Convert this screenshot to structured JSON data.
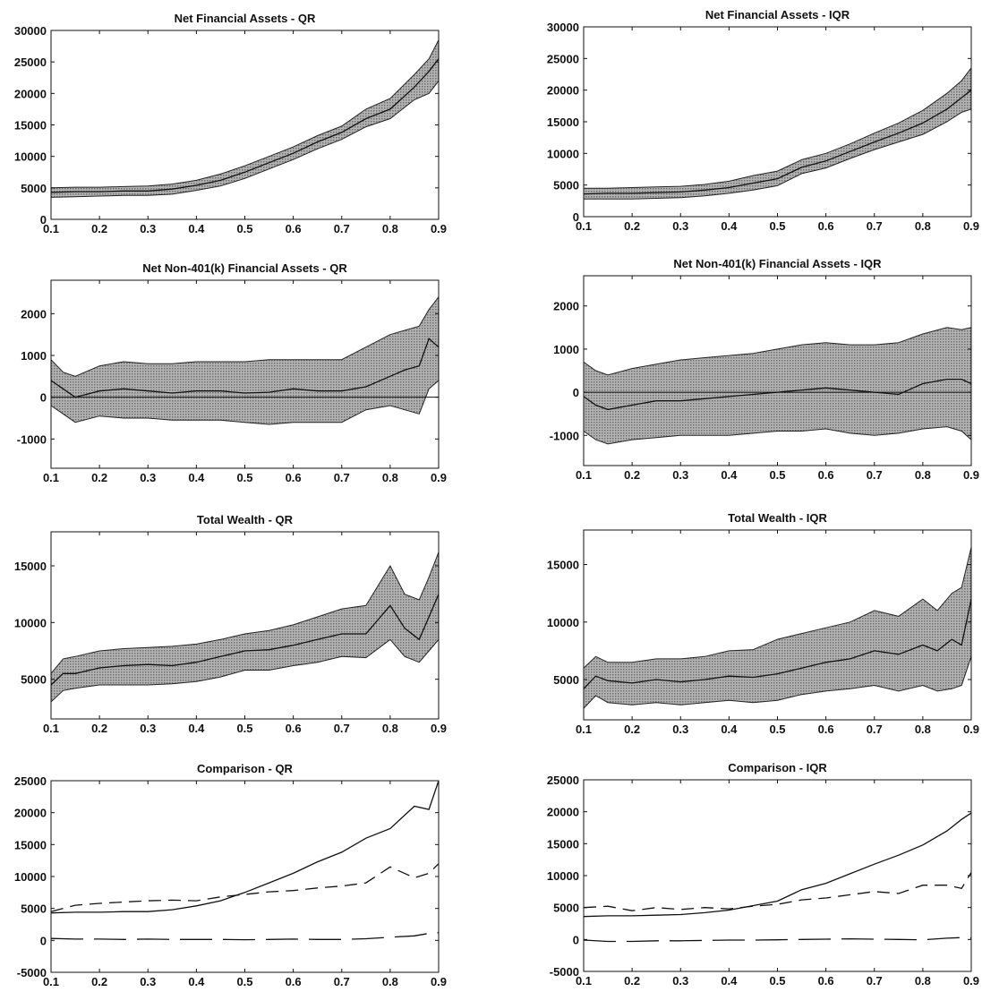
{
  "chart_data": [
    {
      "type": "area",
      "title": "Net Financial Assets - QR",
      "xlim": [
        0.1,
        0.9
      ],
      "ylim": [
        0,
        30000
      ],
      "xticks": [
        "0.1",
        "0.2",
        "0.3",
        "0.4",
        "0.5",
        "0.6",
        "0.7",
        "0.8",
        "0.9"
      ],
      "yticks": [
        "0",
        "5000",
        "10000",
        "15000",
        "20000",
        "25000",
        "30000"
      ],
      "x": [
        0.1,
        0.15,
        0.2,
        0.25,
        0.3,
        0.35,
        0.4,
        0.45,
        0.5,
        0.55,
        0.6,
        0.65,
        0.7,
        0.75,
        0.8,
        0.85,
        0.88,
        0.9
      ],
      "series": [
        {
          "role": "estimate",
          "values": [
            4300,
            4400,
            4400,
            4500,
            4500,
            4800,
            5400,
            6200,
            7500,
            9000,
            10500,
            12300,
            13800,
            16000,
            17500,
            21000,
            23500,
            25500
          ]
        },
        {
          "role": "upper",
          "values": [
            5000,
            5100,
            5100,
            5200,
            5300,
            5600,
            6200,
            7200,
            8500,
            10000,
            11500,
            13300,
            14800,
            17500,
            19200,
            23000,
            25500,
            28500
          ]
        },
        {
          "role": "lower",
          "values": [
            3500,
            3600,
            3700,
            3800,
            3800,
            4000,
            4600,
            5300,
            6500,
            8000,
            9500,
            11200,
            12700,
            14700,
            16000,
            19000,
            20000,
            22000
          ]
        }
      ],
      "zero_line": false
    },
    {
      "type": "area",
      "title": "Net Financial Assets - IQR",
      "xlim": [
        0.1,
        0.9
      ],
      "ylim": [
        0,
        30000
      ],
      "xticks": [
        "0.1",
        "0.2",
        "0.3",
        "0.4",
        "0.5",
        "0.6",
        "0.7",
        "0.8",
        "0.9"
      ],
      "yticks": [
        "0",
        "5000",
        "10000",
        "15000",
        "20000",
        "25000",
        "30000"
      ],
      "x": [
        0.1,
        0.15,
        0.2,
        0.25,
        0.3,
        0.35,
        0.4,
        0.45,
        0.5,
        0.55,
        0.6,
        0.65,
        0.7,
        0.75,
        0.8,
        0.85,
        0.88,
        0.9
      ],
      "series": [
        {
          "role": "estimate",
          "values": [
            3600,
            3700,
            3700,
            3800,
            3900,
            4200,
            4600,
            5300,
            6000,
            7800,
            8800,
            10300,
            11800,
            13200,
            14800,
            17000,
            18800,
            20000
          ]
        },
        {
          "role": "upper",
          "values": [
            4500,
            4500,
            4600,
            4700,
            4800,
            5100,
            5600,
            6500,
            7200,
            9000,
            10000,
            11500,
            13200,
            14800,
            16800,
            19500,
            21500,
            23500
          ]
        },
        {
          "role": "lower",
          "values": [
            2800,
            2800,
            2800,
            2900,
            3000,
            3300,
            3700,
            4200,
            4900,
            6800,
            7700,
            9200,
            10600,
            11800,
            13000,
            15000,
            16500,
            17000
          ]
        }
      ],
      "zero_line": false
    },
    {
      "type": "area",
      "title": "Net Non-401(k) Financial Assets - QR",
      "xlim": [
        0.1,
        0.9
      ],
      "ylim": [
        -1700,
        2800
      ],
      "xticks": [
        "0.1",
        "0.2",
        "0.3",
        "0.4",
        "0.5",
        "0.6",
        "0.7",
        "0.8",
        "0.9"
      ],
      "yticks": [
        "-1000",
        "0",
        "1000",
        "2000"
      ],
      "x": [
        0.1,
        0.125,
        0.15,
        0.2,
        0.25,
        0.3,
        0.35,
        0.4,
        0.45,
        0.5,
        0.55,
        0.6,
        0.65,
        0.7,
        0.75,
        0.8,
        0.83,
        0.86,
        0.88,
        0.9
      ],
      "series": [
        {
          "role": "estimate",
          "values": [
            400,
            200,
            0,
            150,
            200,
            150,
            100,
            150,
            150,
            100,
            120,
            200,
            150,
            150,
            250,
            500,
            650,
            750,
            1400,
            1200
          ]
        },
        {
          "role": "upper",
          "values": [
            900,
            600,
            500,
            750,
            850,
            800,
            800,
            850,
            850,
            850,
            900,
            900,
            900,
            900,
            1200,
            1500,
            1600,
            1700,
            2100,
            2400
          ]
        },
        {
          "role": "lower",
          "values": [
            -200,
            -400,
            -600,
            -450,
            -500,
            -500,
            -550,
            -550,
            -550,
            -600,
            -650,
            -600,
            -600,
            -600,
            -300,
            -200,
            -300,
            -400,
            200,
            400
          ]
        }
      ],
      "zero_line": true
    },
    {
      "type": "area",
      "title": "Net Non-401(k) Financial Assets - IQR",
      "xlim": [
        0.1,
        0.9
      ],
      "ylim": [
        -1700,
        2700
      ],
      "xticks": [
        "0.1",
        "0.2",
        "0.3",
        "0.4",
        "0.5",
        "0.6",
        "0.7",
        "0.8",
        "0.9"
      ],
      "yticks": [
        "-1000",
        "0",
        "1000",
        "2000"
      ],
      "x": [
        0.1,
        0.125,
        0.15,
        0.2,
        0.25,
        0.3,
        0.35,
        0.4,
        0.45,
        0.5,
        0.55,
        0.6,
        0.65,
        0.7,
        0.75,
        0.8,
        0.85,
        0.88,
        0.9
      ],
      "series": [
        {
          "role": "estimate",
          "values": [
            -100,
            -300,
            -400,
            -300,
            -200,
            -200,
            -150,
            -100,
            -50,
            0,
            50,
            100,
            50,
            0,
            -50,
            200,
            300,
            300,
            200
          ]
        },
        {
          "role": "upper",
          "values": [
            700,
            500,
            400,
            550,
            650,
            750,
            800,
            850,
            900,
            1000,
            1100,
            1150,
            1100,
            1100,
            1150,
            1350,
            1500,
            1450,
            1500
          ]
        },
        {
          "role": "lower",
          "values": [
            -900,
            -1100,
            -1200,
            -1100,
            -1050,
            -1000,
            -1000,
            -1000,
            -950,
            -900,
            -900,
            -850,
            -950,
            -1000,
            -950,
            -850,
            -800,
            -900,
            -1100
          ]
        }
      ],
      "zero_line": true
    },
    {
      "type": "area",
      "title": "Total Wealth - QR",
      "xlim": [
        0.1,
        0.9
      ],
      "ylim": [
        1500,
        18000
      ],
      "xticks": [
        "0.1",
        "0.2",
        "0.3",
        "0.4",
        "0.5",
        "0.6",
        "0.7",
        "0.8",
        "0.9"
      ],
      "yticks": [
        "5000",
        "10000",
        "15000"
      ],
      "x": [
        0.1,
        0.125,
        0.15,
        0.2,
        0.25,
        0.3,
        0.35,
        0.4,
        0.45,
        0.5,
        0.55,
        0.6,
        0.65,
        0.7,
        0.75,
        0.8,
        0.83,
        0.86,
        0.88,
        0.9
      ],
      "series": [
        {
          "role": "estimate",
          "values": [
            4500,
            5500,
            5500,
            6000,
            6200,
            6300,
            6200,
            6500,
            7000,
            7500,
            7600,
            8000,
            8500,
            9000,
            9000,
            11500,
            9500,
            8500,
            10500,
            12500
          ]
        },
        {
          "role": "upper",
          "values": [
            5500,
            6800,
            7000,
            7500,
            7700,
            7800,
            7900,
            8100,
            8500,
            9000,
            9300,
            9800,
            10500,
            11200,
            11500,
            15000,
            12500,
            12000,
            14000,
            16200
          ]
        },
        {
          "role": "lower",
          "values": [
            3000,
            4000,
            4200,
            4500,
            4500,
            4500,
            4600,
            4800,
            5200,
            5800,
            5800,
            6200,
            6500,
            7000,
            6900,
            8500,
            7000,
            6500,
            7500,
            8500
          ]
        }
      ],
      "zero_line": false
    },
    {
      "type": "area",
      "title": "Total Wealth - IQR",
      "xlim": [
        0.1,
        0.9
      ],
      "ylim": [
        1500,
        18000
      ],
      "xticks": [
        "0.1",
        "0.2",
        "0.3",
        "0.4",
        "0.5",
        "0.6",
        "0.7",
        "0.8",
        "0.9"
      ],
      "yticks": [
        "5000",
        "10000",
        "15000"
      ],
      "x": [
        0.1,
        0.125,
        0.15,
        0.2,
        0.25,
        0.3,
        0.35,
        0.4,
        0.45,
        0.5,
        0.55,
        0.6,
        0.65,
        0.7,
        0.75,
        0.8,
        0.83,
        0.86,
        0.88,
        0.9
      ],
      "series": [
        {
          "role": "estimate",
          "values": [
            4200,
            5300,
            4900,
            4700,
            5000,
            4800,
            5000,
            5300,
            5200,
            5500,
            6000,
            6500,
            6800,
            7500,
            7200,
            8000,
            7500,
            8500,
            8000,
            12000
          ]
        },
        {
          "role": "upper",
          "values": [
            6000,
            7000,
            6500,
            6500,
            6800,
            6800,
            7000,
            7500,
            7600,
            8500,
            9000,
            9500,
            10000,
            11000,
            10500,
            12000,
            11000,
            12500,
            13000,
            16500
          ]
        },
        {
          "role": "lower",
          "values": [
            2500,
            3600,
            3000,
            2800,
            3000,
            2800,
            3000,
            3200,
            3000,
            3200,
            3700,
            4000,
            4200,
            4500,
            4000,
            4500,
            4000,
            4200,
            4500,
            7000
          ]
        }
      ],
      "zero_line": false
    },
    {
      "type": "line",
      "title": "Comparison - QR",
      "xlim": [
        0.1,
        0.9
      ],
      "ylim": [
        -5000,
        25000
      ],
      "xticks": [
        "0.1",
        "0.2",
        "0.3",
        "0.4",
        "0.5",
        "0.6",
        "0.7",
        "0.8",
        "0.9"
      ],
      "yticks": [
        "-5000",
        "0",
        "5000",
        "10000",
        "15000",
        "20000",
        "25000"
      ],
      "x": [
        0.1,
        0.15,
        0.2,
        0.25,
        0.3,
        0.35,
        0.4,
        0.45,
        0.5,
        0.55,
        0.6,
        0.65,
        0.7,
        0.75,
        0.8,
        0.85,
        0.88,
        0.9
      ],
      "series": [
        {
          "style": "solid",
          "values": [
            4300,
            4400,
            4400,
            4500,
            4500,
            4800,
            5400,
            6200,
            7500,
            9000,
            10500,
            12300,
            13800,
            16000,
            17500,
            21000,
            20500,
            25000
          ]
        },
        {
          "style": "dash",
          "values": [
            4500,
            5500,
            5800,
            6000,
            6200,
            6300,
            6200,
            6800,
            7200,
            7600,
            7800,
            8200,
            8500,
            9000,
            11500,
            9800,
            10500,
            12000
          ]
        },
        {
          "style": "longdash",
          "values": [
            300,
            200,
            200,
            150,
            200,
            150,
            150,
            150,
            100,
            150,
            200,
            150,
            150,
            250,
            500,
            700,
            1100,
            1200
          ]
        }
      ],
      "zero_line": false
    },
    {
      "type": "line",
      "title": "Comparison - IQR",
      "xlim": [
        0.1,
        0.9
      ],
      "ylim": [
        -5000,
        25000
      ],
      "xticks": [
        "0.1",
        "0.2",
        "0.3",
        "0.4",
        "0.5",
        "0.6",
        "0.7",
        "0.8",
        "0.9"
      ],
      "yticks": [
        "-5000",
        "0",
        "5000",
        "10000",
        "15000",
        "20000",
        "25000"
      ],
      "x": [
        0.1,
        0.15,
        0.2,
        0.25,
        0.3,
        0.35,
        0.4,
        0.45,
        0.5,
        0.55,
        0.6,
        0.65,
        0.7,
        0.75,
        0.8,
        0.85,
        0.88,
        0.9
      ],
      "series": [
        {
          "style": "solid",
          "values": [
            3600,
            3700,
            3700,
            3800,
            3900,
            4200,
            4600,
            5300,
            6000,
            7800,
            8800,
            10300,
            11800,
            13200,
            14800,
            17000,
            18800,
            19800
          ]
        },
        {
          "style": "dash",
          "values": [
            5000,
            5200,
            4500,
            5000,
            4700,
            5000,
            4800,
            5200,
            5500,
            6200,
            6500,
            7000,
            7500,
            7200,
            8500,
            8500,
            8000,
            10500
          ]
        },
        {
          "style": "longdash",
          "values": [
            -100,
            -300,
            -300,
            -200,
            -200,
            -150,
            -100,
            -100,
            -50,
            0,
            50,
            100,
            50,
            0,
            -50,
            200,
            300,
            200
          ]
        }
      ],
      "zero_line": false
    }
  ]
}
